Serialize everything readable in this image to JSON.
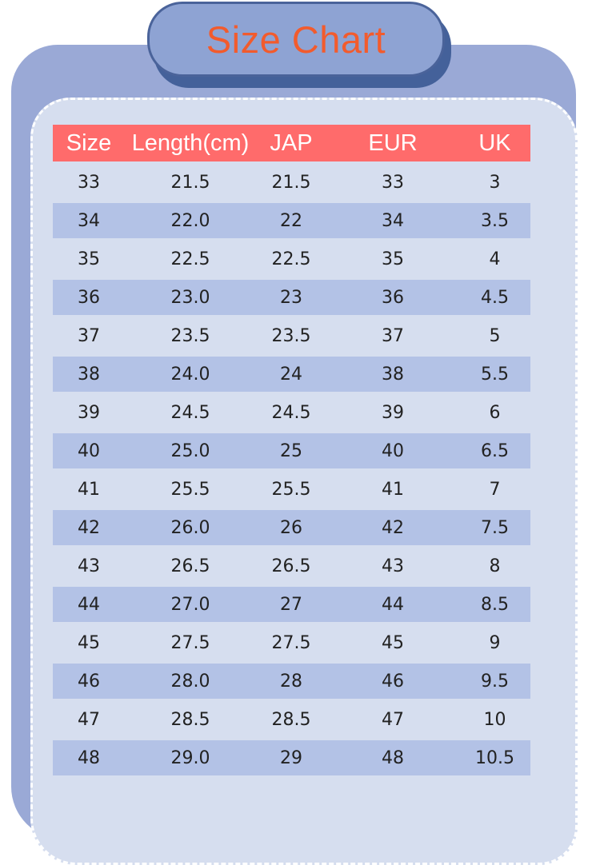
{
  "title": "Size Chart",
  "colors": {
    "title_text": "#f25b2d",
    "title_pill": "#8ea3d3",
    "header_bg": "#ff6b6b",
    "row_shade": "#b3c2e6",
    "panel_bg": "#d6deef",
    "border": "#9aa9d6"
  },
  "table": {
    "headers": [
      "Size",
      "Length(cm)",
      "JAP",
      "EUR",
      "UK"
    ],
    "rows": [
      [
        "33",
        "21.5",
        "21.5",
        "33",
        "3"
      ],
      [
        "34",
        "22.0",
        "22",
        "34",
        "3.5"
      ],
      [
        "35",
        "22.5",
        "22.5",
        "35",
        "4"
      ],
      [
        "36",
        "23.0",
        "23",
        "36",
        "4.5"
      ],
      [
        "37",
        "23.5",
        "23.5",
        "37",
        "5"
      ],
      [
        "38",
        "24.0",
        "24",
        "38",
        "5.5"
      ],
      [
        "39",
        "24.5",
        "24.5",
        "39",
        "6"
      ],
      [
        "40",
        "25.0",
        "25",
        "40",
        "6.5"
      ],
      [
        "41",
        "25.5",
        "25.5",
        "41",
        "7"
      ],
      [
        "42",
        "26.0",
        "26",
        "42",
        "7.5"
      ],
      [
        "43",
        "26.5",
        "26.5",
        "43",
        "8"
      ],
      [
        "44",
        "27.0",
        "27",
        "44",
        "8.5"
      ],
      [
        "45",
        "27.5",
        "27.5",
        "45",
        "9"
      ],
      [
        "46",
        "28.0",
        "28",
        "46",
        "9.5"
      ],
      [
        "47",
        "28.5",
        "28.5",
        "47",
        "10"
      ],
      [
        "48",
        "29.0",
        "29",
        "48",
        "10.5"
      ]
    ]
  }
}
